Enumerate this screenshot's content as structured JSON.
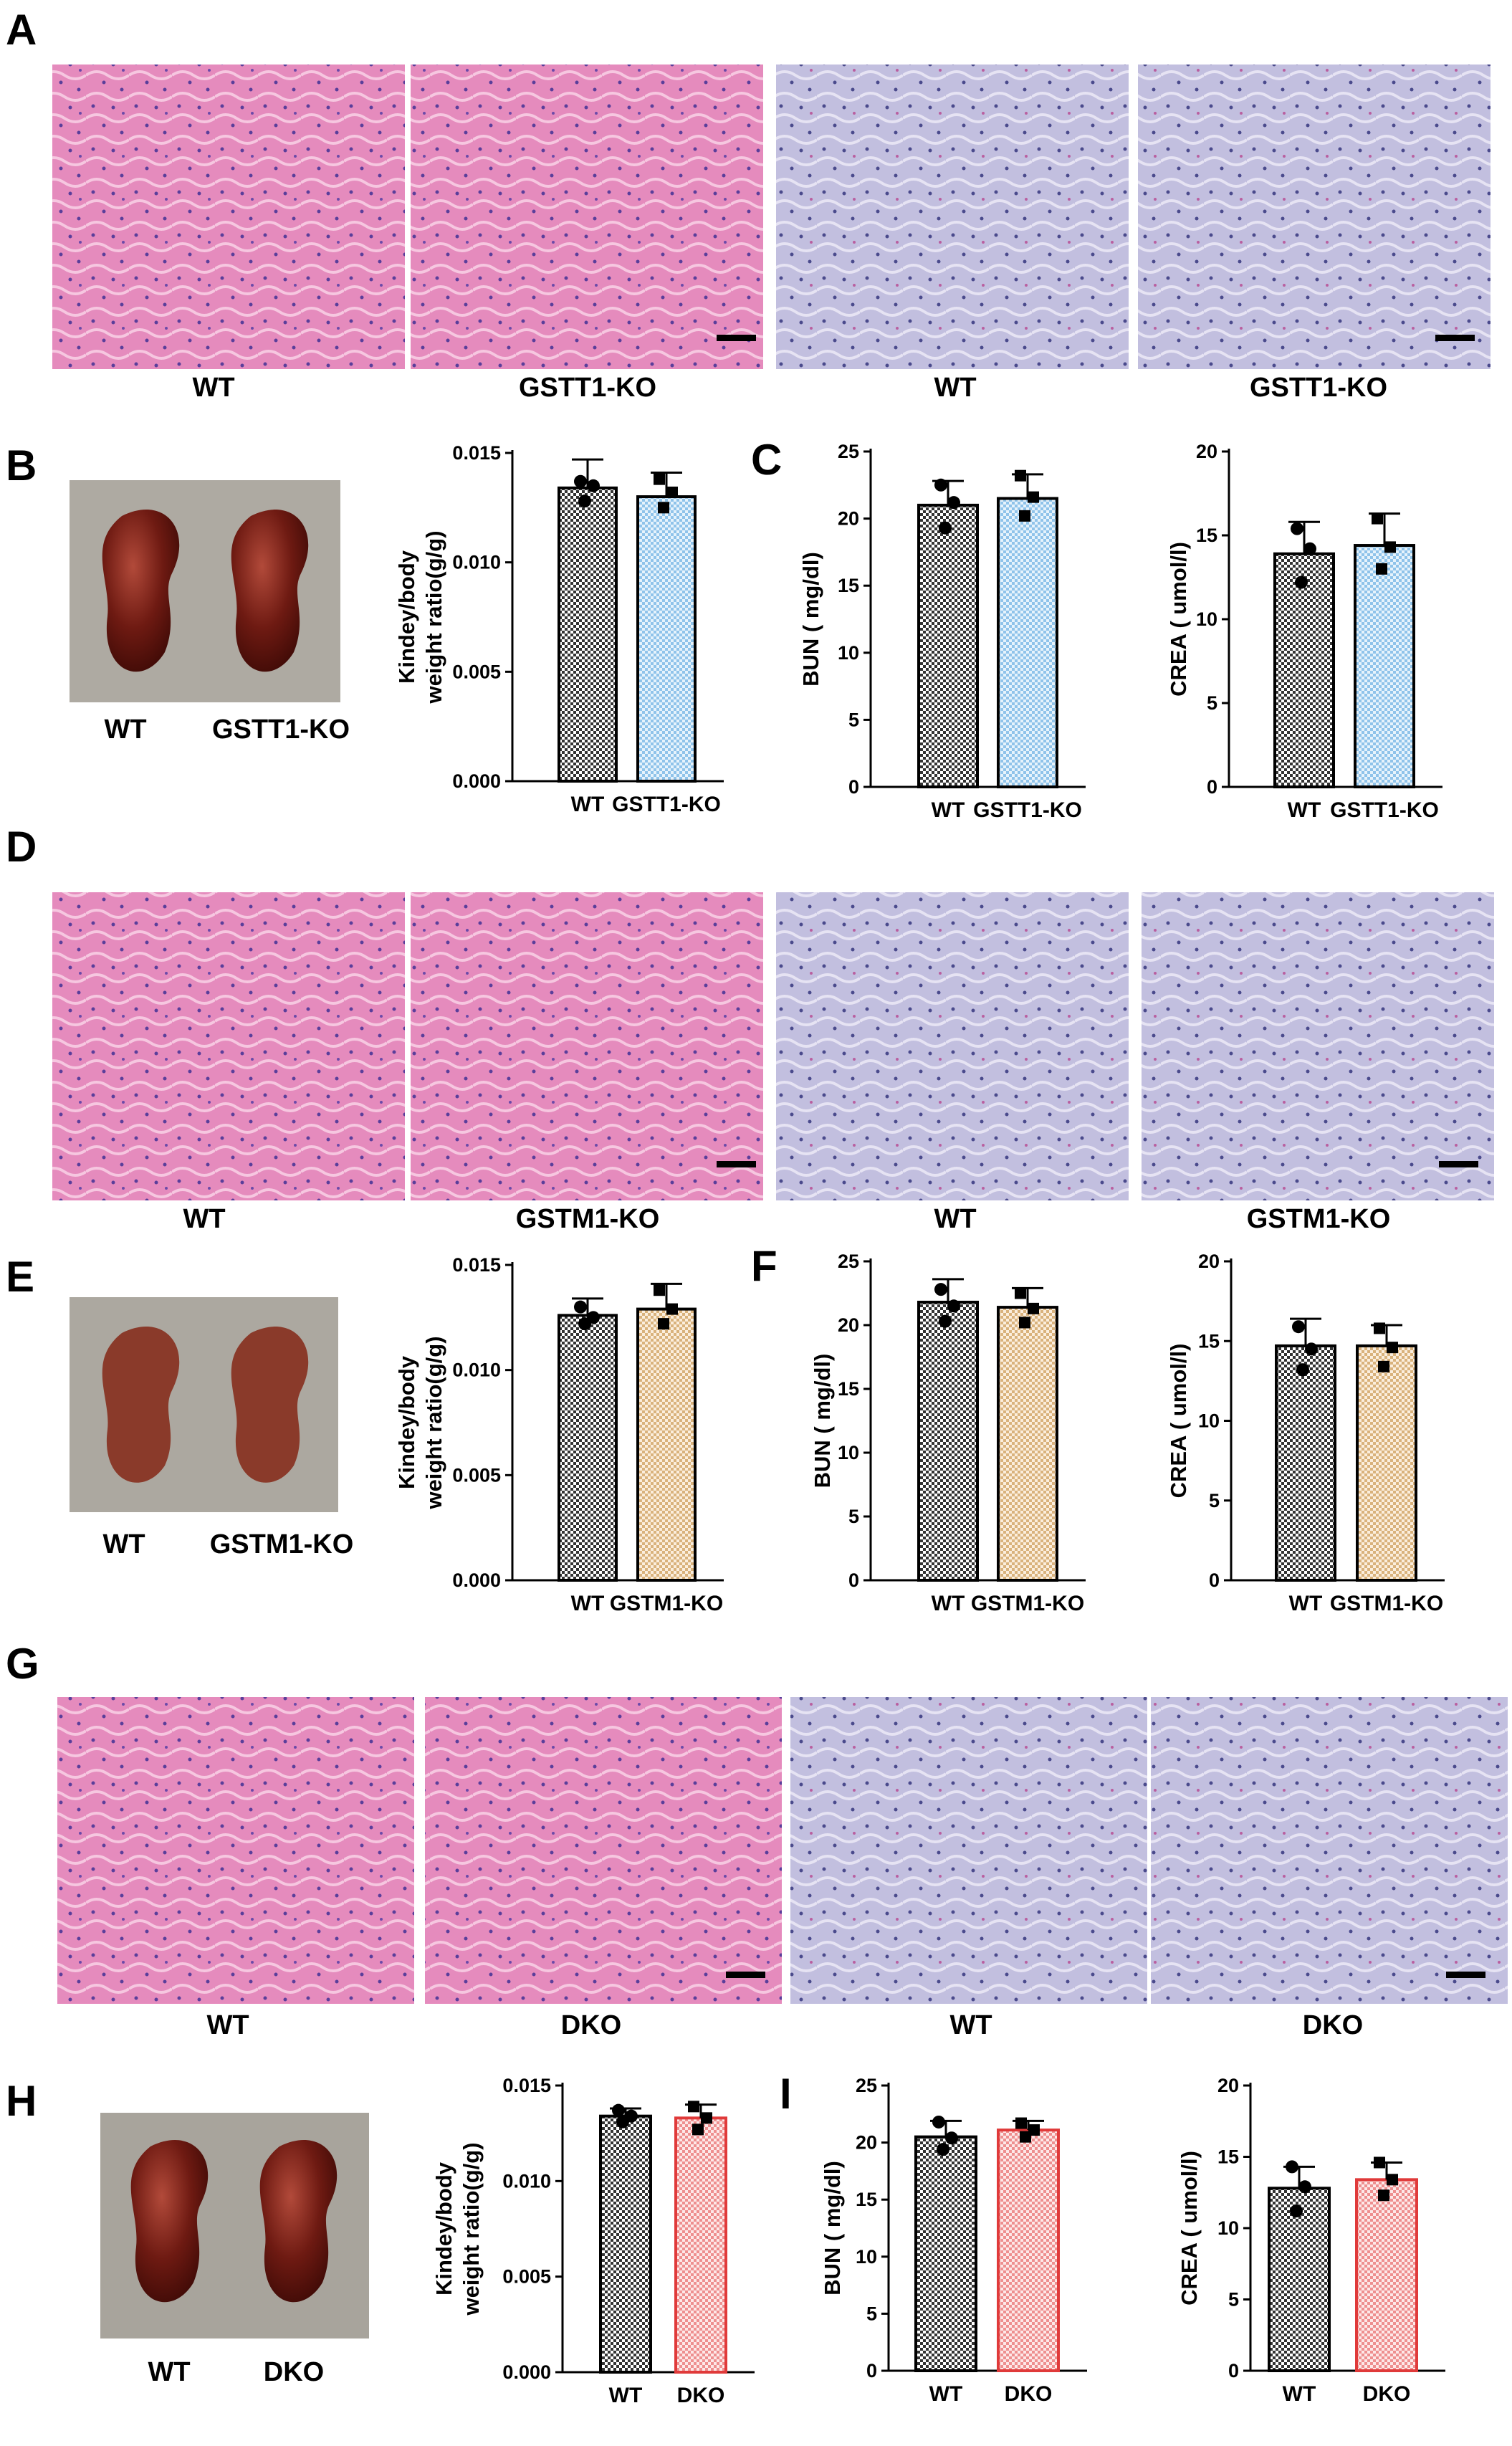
{
  "colors": {
    "wt_fill": "#7a7a7a",
    "gstt1_fill": "#aed6f1",
    "gstm1_fill": "#e7c79a",
    "dko_fill": "#f2a2a2",
    "dko_edge": "#e03a3a",
    "he_stain": "#e27fb4",
    "pas_stain": "#b9b6d8"
  },
  "panel_letters": {
    "A": "A",
    "B": "B",
    "C": "C",
    "D": "D",
    "E": "E",
    "F": "F",
    "G": "G",
    "H": "H",
    "I": "I"
  },
  "histology": {
    "A": [
      "WT",
      "GSTT1-KO",
      "WT",
      "GSTT1-KO"
    ],
    "D": [
      "WT",
      "GSTM1-KO",
      "WT",
      "GSTM1-KO"
    ],
    "G": [
      "WT",
      "DKO",
      "WT",
      "DKO"
    ]
  },
  "kidney_photos": {
    "B": [
      "WT",
      "GSTT1-KO"
    ],
    "E": [
      "WT",
      "GSTM1-KO"
    ],
    "H": [
      "WT",
      "DKO"
    ]
  },
  "chart_data": [
    {
      "id": "B-ratio",
      "type": "bar",
      "ylabel_line1": "Kindey/body",
      "ylabel_line2": "weight ratio(g/g)",
      "ylim": [
        0,
        0.015
      ],
      "ticks": [
        "0.000",
        "0.005",
        "0.010",
        "0.015"
      ],
      "categories": [
        "WT",
        "GSTT1-KO"
      ],
      "values": [
        0.0134,
        0.013
      ],
      "errors": [
        0.0013,
        0.0011
      ],
      "points": [
        [
          0.0137,
          0.0135,
          0.0128
        ],
        [
          0.0138,
          0.0132,
          0.0125
        ]
      ],
      "colors": [
        "wt",
        "gstt1"
      ]
    },
    {
      "id": "C-bun",
      "type": "bar",
      "ylabel_line1": "BUN ( mg/dl)",
      "ylim": [
        0,
        25
      ],
      "ticks": [
        "0",
        "5",
        "10",
        "15",
        "20",
        "25"
      ],
      "categories": [
        "WT",
        "GSTT1-KO"
      ],
      "values": [
        21.0,
        21.5
      ],
      "errors": [
        1.8,
        1.8
      ],
      "points": [
        [
          22.5,
          21.2,
          19.3
        ],
        [
          23.2,
          21.6,
          20.2
        ]
      ],
      "colors": [
        "wt",
        "gstt1"
      ]
    },
    {
      "id": "C-crea",
      "type": "bar",
      "ylabel_line1": "CREA ( umol/l)",
      "ylim": [
        0,
        20
      ],
      "ticks": [
        "0",
        "5",
        "10",
        "15",
        "20"
      ],
      "categories": [
        "WT",
        "GSTT1-KO"
      ],
      "values": [
        13.9,
        14.4
      ],
      "errors": [
        1.9,
        1.9
      ],
      "points": [
        [
          15.4,
          14.2,
          12.2
        ],
        [
          16.0,
          14.3,
          13.0
        ]
      ],
      "colors": [
        "wt",
        "gstt1"
      ]
    },
    {
      "id": "E-ratio",
      "type": "bar",
      "ylabel_line1": "Kindey/body",
      "ylabel_line2": "weight ratio(g/g)",
      "ylim": [
        0,
        0.015
      ],
      "ticks": [
        "0.000",
        "0.005",
        "0.010",
        "0.015"
      ],
      "categories": [
        "WT",
        "GSTM1-KO"
      ],
      "values": [
        0.0126,
        0.0129
      ],
      "errors": [
        0.0008,
        0.0012
      ],
      "points": [
        [
          0.013,
          0.0125,
          0.0122
        ],
        [
          0.0138,
          0.0129,
          0.0122
        ]
      ],
      "colors": [
        "wt",
        "gstm1"
      ]
    },
    {
      "id": "F-bun",
      "type": "bar",
      "ylabel_line1": "BUN ( mg/dl)",
      "ylim": [
        0,
        25
      ],
      "ticks": [
        "0",
        "5",
        "10",
        "15",
        "20",
        "25"
      ],
      "categories": [
        "WT",
        "GSTM1-KO"
      ],
      "values": [
        21.8,
        21.4
      ],
      "errors": [
        1.8,
        1.5
      ],
      "points": [
        [
          22.8,
          21.5,
          20.3
        ],
        [
          22.5,
          21.3,
          20.2
        ]
      ],
      "colors": [
        "wt",
        "gstm1"
      ]
    },
    {
      "id": "F-crea",
      "type": "bar",
      "ylabel_line1": "CREA ( umol/l)",
      "ylim": [
        0,
        20
      ],
      "ticks": [
        "0",
        "5",
        "10",
        "15",
        "20"
      ],
      "categories": [
        "WT",
        "GSTM1-KO"
      ],
      "values": [
        14.7,
        14.7
      ],
      "errors": [
        1.7,
        1.3
      ],
      "points": [
        [
          15.9,
          14.5,
          13.2
        ],
        [
          15.8,
          14.6,
          13.4
        ]
      ],
      "colors": [
        "wt",
        "gstm1"
      ]
    },
    {
      "id": "H-ratio",
      "type": "bar",
      "ylabel_line1": "Kindey/body",
      "ylabel_line2": "weight ratio(g/g)",
      "ylim": [
        0,
        0.015
      ],
      "ticks": [
        "0.000",
        "0.005",
        "0.010",
        "0.015"
      ],
      "categories": [
        "WT",
        "DKO"
      ],
      "values": [
        0.0134,
        0.0133
      ],
      "errors": [
        0.0004,
        0.0007
      ],
      "points": [
        [
          0.0137,
          0.0134,
          0.0131
        ],
        [
          0.0139,
          0.0133,
          0.0127
        ]
      ],
      "colors": [
        "wt",
        "dko"
      ]
    },
    {
      "id": "I-bun",
      "type": "bar",
      "ylabel_line1": "BUN ( mg/dl)",
      "ylim": [
        0,
        25
      ],
      "ticks": [
        "0",
        "5",
        "10",
        "15",
        "20",
        "25"
      ],
      "categories": [
        "WT",
        "DKO"
      ],
      "values": [
        20.5,
        21.1
      ],
      "errors": [
        1.4,
        0.8
      ],
      "points": [
        [
          21.8,
          20.4,
          19.4
        ],
        [
          21.7,
          21.1,
          20.5
        ]
      ],
      "colors": [
        "wt",
        "dko"
      ]
    },
    {
      "id": "I-crea",
      "type": "bar",
      "ylabel_line1": "CREA ( umol/l)",
      "ylim": [
        0,
        20
      ],
      "ticks": [
        "0",
        "5",
        "10",
        "15",
        "20"
      ],
      "categories": [
        "WT",
        "DKO"
      ],
      "values": [
        12.8,
        13.4
      ],
      "errors": [
        1.5,
        1.2
      ],
      "points": [
        [
          14.3,
          12.9,
          11.2
        ],
        [
          14.6,
          13.4,
          12.3
        ]
      ],
      "colors": [
        "wt",
        "dko"
      ]
    }
  ]
}
